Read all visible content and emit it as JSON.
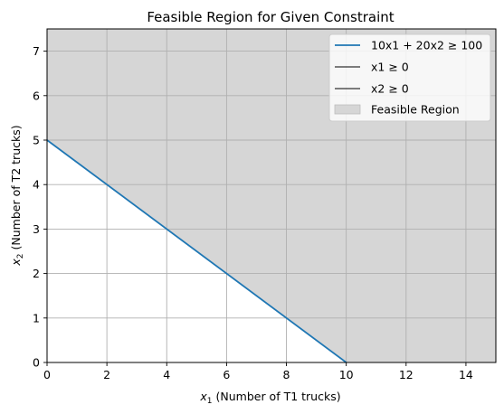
{
  "chart_data": {
    "type": "area",
    "title": "Feasible Region for Given Constraint",
    "xlabel_var": "x",
    "xlabel_sub": "1",
    "xlabel_rest": " (Number of T1 trucks)",
    "ylabel_var": "x",
    "ylabel_sub": "2",
    "ylabel_rest": " (Number of T2 trucks)",
    "xlim": [
      0,
      15
    ],
    "ylim": [
      0,
      7.5
    ],
    "xticks": [
      0,
      2,
      4,
      6,
      8,
      10,
      12,
      14
    ],
    "yticks": [
      0,
      1,
      2,
      3,
      4,
      5,
      6,
      7
    ],
    "grid": true,
    "legend_position": "top-right",
    "series": [
      {
        "name": "10x1 + 20x2 ≥ 100",
        "kind": "line",
        "color": "#1f77b4",
        "x": [
          0,
          10
        ],
        "y": [
          5,
          0
        ]
      },
      {
        "name": "x1 ≥ 0",
        "kind": "line",
        "color": "#000000",
        "x": [
          0,
          0
        ],
        "y": [
          0,
          7.5
        ]
      },
      {
        "name": "x2 ≥ 0",
        "kind": "line",
        "color": "#000000",
        "x": [
          0,
          15
        ],
        "y": [
          0,
          0
        ]
      },
      {
        "name": "Feasible Region",
        "kind": "fill",
        "color": "#d6d6d6",
        "polygon": [
          [
            0,
            5
          ],
          [
            0,
            7.5
          ],
          [
            15,
            7.5
          ],
          [
            15,
            0
          ],
          [
            10,
            0
          ]
        ]
      }
    ]
  }
}
